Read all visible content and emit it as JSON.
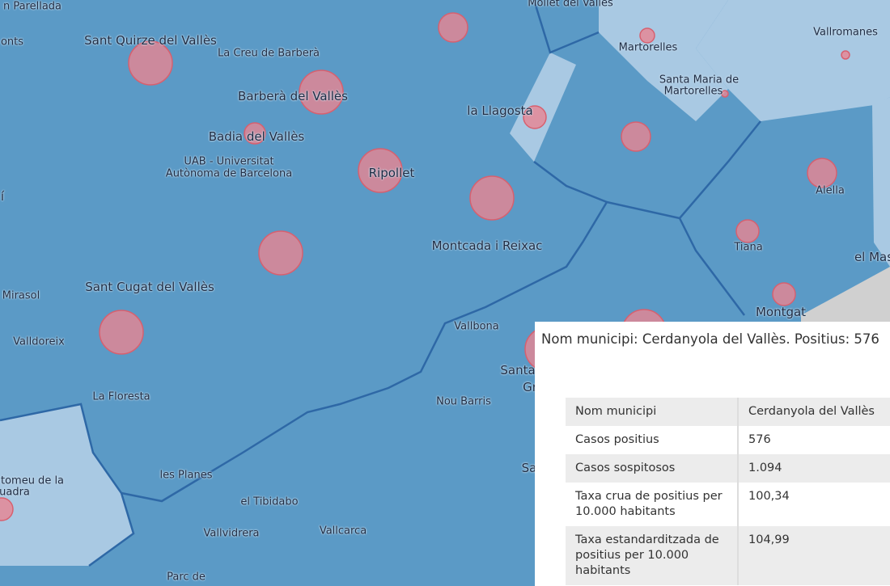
{
  "map": {
    "labels": [
      "n Parellada",
      "onts",
      "Sant Quirze del Vallès",
      "La Creu de Barberà",
      "Barberà del Vallès",
      "Badia del Vallès",
      "UAB - Universitat",
      "Autònoma de Barcelona",
      "Ripollet",
      "la Llagosta",
      "Mollet del Vallès",
      "Martorelles",
      "Santa Maria de",
      "Martorelles",
      "Vallromanes",
      "Alella",
      "Tiana",
      "el Mas",
      "Montgat",
      "Montcada i Reixac",
      "Sant Cugat del Vallès",
      "Mirasol",
      "Valldoreix",
      "La Floresta",
      "Vallbona",
      "Santa",
      "Gr",
      "Nou Barris",
      "Sa",
      "les Planes",
      "el Tibidabo",
      "Vallvidrera",
      "Vallcarca",
      "tomeu de la",
      "uadra",
      "Parc de",
      "í"
    ]
  },
  "popup": {
    "title": "Nom municipi: Cerdanyola del Vallès. Positius: 576",
    "table": {
      "rows": [
        [
          "Nom municipi",
          "Cerdanyola del Vallès"
        ],
        [
          "Casos positius",
          "576"
        ],
        [
          "Casos sospitosos",
          "1.094"
        ],
        [
          "Taxa crua de positius per 10.000 habitants",
          "100,34"
        ],
        [
          "Taxa estandarditzada de positius per 10.000 habitants",
          "104,99"
        ]
      ]
    }
  }
}
